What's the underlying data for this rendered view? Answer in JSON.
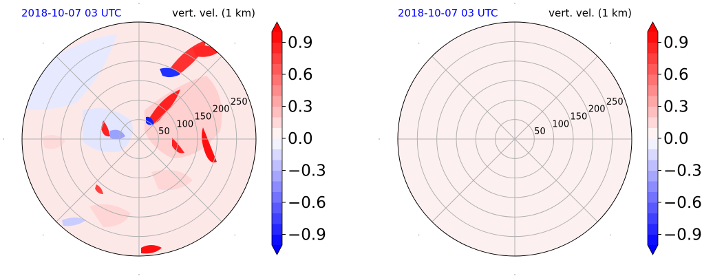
{
  "panels": [
    {
      "time_label": "2018-10-07 03 UTC",
      "variable_label": "vert. vel. (1 km)",
      "field_state": "structured",
      "background_color": "#fde8e8"
    },
    {
      "time_label": "2018-10-07 03 UTC",
      "variable_label": "vert. vel. (1 km)",
      "field_state": "uniform",
      "background_color": "#fdf0f0"
    }
  ],
  "colors": {
    "time_label": "#0000ff",
    "grid": "#b0b0b0",
    "positive": "#ff0000",
    "negative": "#0000ff"
  },
  "chart_data": [
    {
      "type": "heatmap",
      "projection": "polar",
      "radial_ticks": [
        50,
        100,
        150,
        200,
        250
      ],
      "radial_tick_labels": [
        "50",
        "100",
        "150",
        "200",
        "250"
      ],
      "radial_max": 300,
      "spoke_angles_deg": [
        0,
        45,
        90,
        135,
        180,
        225,
        270,
        315
      ],
      "colorbar": {
        "ticks": [
          0.9,
          0.6,
          0.3,
          0.0,
          -0.3,
          -0.6,
          -0.9
        ],
        "tick_labels": [
          "0.9",
          "0.6",
          "0.3",
          "0.0",
          "−0.3",
          "−0.6",
          "−0.9"
        ],
        "range": [
          -1.0,
          1.0
        ],
        "extend": "both",
        "levels": [
          -1.0,
          -0.9,
          -0.8,
          -0.7,
          -0.6,
          -0.5,
          -0.4,
          -0.3,
          -0.2,
          -0.1,
          0.0,
          0.1,
          0.2,
          0.3,
          0.4,
          0.5,
          0.6,
          0.7,
          0.8,
          0.9,
          1.0
        ],
        "colormap": "bwr"
      }
    },
    {
      "type": "heatmap",
      "projection": "polar",
      "radial_ticks": [
        50,
        100,
        150,
        200,
        250
      ],
      "radial_tick_labels": [
        "50",
        "100",
        "150",
        "200",
        "250"
      ],
      "radial_max": 300,
      "spoke_angles_deg": [
        0,
        45,
        90,
        135,
        180,
        225,
        270,
        315
      ],
      "colorbar": {
        "ticks": [
          0.9,
          0.6,
          0.3,
          0.0,
          -0.3,
          -0.6,
          -0.9
        ],
        "tick_labels": [
          "0.9",
          "0.6",
          "0.3",
          "0.0",
          "−0.3",
          "−0.6",
          "−0.9"
        ],
        "range": [
          -1.0,
          1.0
        ],
        "extend": "both",
        "levels": [
          -1.0,
          -0.9,
          -0.8,
          -0.7,
          -0.6,
          -0.5,
          -0.4,
          -0.3,
          -0.2,
          -0.1,
          0.0,
          0.1,
          0.2,
          0.3,
          0.4,
          0.5,
          0.6,
          0.7,
          0.8,
          0.9,
          1.0
        ],
        "colormap": "bwr"
      }
    }
  ]
}
